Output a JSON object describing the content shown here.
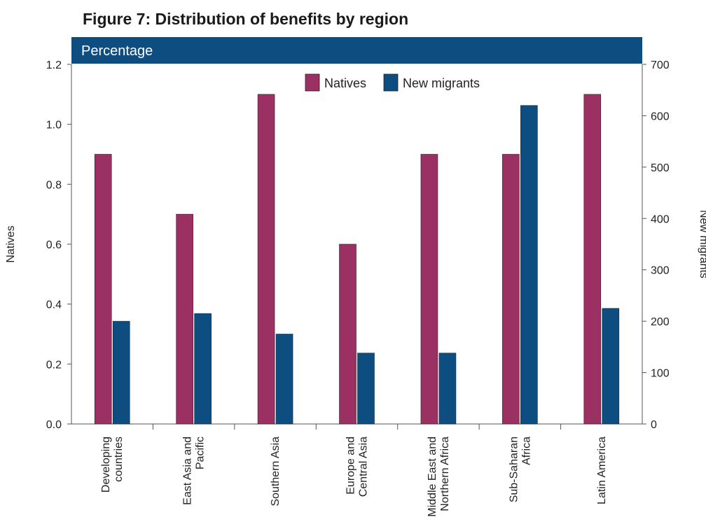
{
  "chart_data": {
    "type": "bar",
    "title": "Figure 7: Distribution of benefits by region",
    "subtitle": "Percentage",
    "categories": [
      [
        "Developing",
        "countries"
      ],
      [
        "East Asia and",
        "Pacific"
      ],
      [
        "Southern Asia"
      ],
      [
        "Europe and",
        "Central Asia"
      ],
      [
        "Middle East and",
        "Northern Africa"
      ],
      [
        "Sub-Saharan",
        "Africa"
      ],
      [
        "Latin America"
      ]
    ],
    "series": [
      {
        "name": "Natives",
        "axis": "left",
        "color": "#9b3163",
        "values": [
          0.9,
          0.7,
          1.1,
          0.6,
          0.9,
          0.9,
          1.1
        ]
      },
      {
        "name": "New migrants",
        "axis": "right",
        "color": "#0e4d80",
        "values": [
          200,
          215,
          175,
          138,
          138,
          620,
          225
        ]
      }
    ],
    "ylabel_left": "Natives",
    "ylabel_right": "New migrants",
    "ylim_left": [
      0,
      1.2
    ],
    "ylim_right": [
      0,
      700
    ],
    "yticks_left": [
      "0.0",
      "0.2",
      "0.4",
      "0.6",
      "0.8",
      "1.0",
      "1.2"
    ],
    "yticks_right": [
      "0",
      "100",
      "200",
      "300",
      "400",
      "500",
      "600",
      "700"
    ],
    "legend_position": "top-center",
    "banner_color": "#0e4d80",
    "grid": false
  }
}
